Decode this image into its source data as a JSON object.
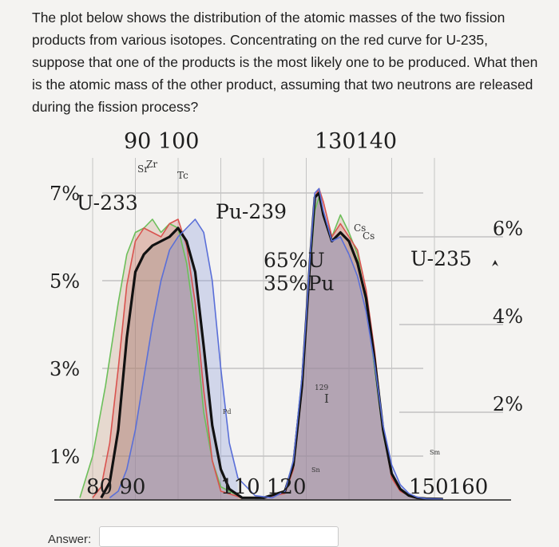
{
  "question": "The plot below shows the distribution of the atomic masses of the two fission products from various isotopes. Concentrating on the red curve for U-235, suppose that one of the products is the most likely one to be produced. What then is the atomic mass of the other product, assuming that two neutrons are released during the fission process?",
  "answer": {
    "label": "Answer:",
    "value": ""
  },
  "chart_data": {
    "type": "area",
    "xlim": [
      75,
      165
    ],
    "left_axis": {
      "ticks": [
        "7%",
        "5%",
        "3%",
        "1%"
      ],
      "values": [
        7,
        5,
        3,
        1
      ]
    },
    "right_axis": {
      "ticks": [
        "6%",
        "4%",
        "2%"
      ],
      "values": [
        6,
        4,
        2
      ]
    },
    "top_ticks": [
      {
        "label": "90 100"
      },
      {
        "label": "130140"
      }
    ],
    "bottom_ticks": [
      {
        "label": "80 90"
      },
      {
        "label": "110 120"
      },
      {
        "label": "150160"
      }
    ],
    "annotations": [
      "U-233",
      "Pu-239",
      "65%U",
      "35%Pu",
      "U-235",
      "Sr",
      "Zr",
      "Tc",
      "Cs",
      "Cs",
      "129",
      "I",
      "Sn",
      "Sm",
      "Pd"
    ],
    "series": [
      {
        "name": "U-233",
        "color": "#6cbf5a",
        "x": [
          77,
          80,
          83,
          86,
          88,
          90,
          92,
          94,
          96,
          98,
          100,
          102,
          104,
          106,
          108,
          110,
          115,
          120,
          125,
          127,
          129,
          130,
          131,
          132,
          133,
          134,
          136,
          138,
          140,
          142,
          144,
          146,
          148,
          150,
          152,
          154,
          156,
          158,
          162
        ],
        "y": [
          0.05,
          1.0,
          2.6,
          4.5,
          5.6,
          6.1,
          6.2,
          6.4,
          6.1,
          6.3,
          6.2,
          5.4,
          4.0,
          2.0,
          0.9,
          0.3,
          0.05,
          0.05,
          0.2,
          0.9,
          2.8,
          4.2,
          5.4,
          6.6,
          6.9,
          6.5,
          6.0,
          6.5,
          6.1,
          5.6,
          4.5,
          3.0,
          1.5,
          0.6,
          0.25,
          0.12,
          0.05,
          0.03,
          0.02
        ]
      },
      {
        "name": "U-235",
        "color": "#d9534f",
        "x": [
          80,
          82,
          84,
          86,
          88,
          90,
          92,
          94,
          96,
          98,
          100,
          102,
          104,
          106,
          108,
          110,
          115,
          120,
          125,
          127,
          129,
          130,
          131,
          132,
          133,
          134,
          136,
          138,
          140,
          142,
          144,
          146,
          148,
          150,
          152,
          154,
          156,
          158,
          162
        ],
        "y": [
          0.05,
          0.3,
          1.3,
          3.0,
          4.9,
          5.9,
          6.2,
          6.1,
          6.0,
          6.3,
          6.4,
          5.8,
          4.5,
          2.5,
          0.9,
          0.2,
          0.05,
          0.05,
          0.15,
          0.7,
          2.5,
          4.0,
          5.6,
          6.9,
          7.1,
          6.8,
          6.0,
          6.3,
          6.0,
          5.7,
          4.8,
          3.4,
          1.6,
          0.5,
          0.2,
          0.1,
          0.05,
          0.03,
          0.02
        ]
      },
      {
        "name": "65%U 35%Pu",
        "color": "#111111",
        "x": [
          82,
          84,
          86,
          88,
          90,
          92,
          94,
          96,
          98,
          100,
          102,
          104,
          106,
          108,
          110,
          112,
          115,
          120,
          125,
          127,
          129,
          130,
          131,
          132,
          133,
          134,
          136,
          138,
          140,
          142,
          144,
          146,
          148,
          150,
          152,
          154,
          156,
          158,
          162
        ],
        "y": [
          0.05,
          0.4,
          1.6,
          3.7,
          5.2,
          5.6,
          5.8,
          5.9,
          6.0,
          6.2,
          5.9,
          5.2,
          3.5,
          1.7,
          0.7,
          0.25,
          0.05,
          0.05,
          0.2,
          0.8,
          2.6,
          4.1,
          5.6,
          6.9,
          7.0,
          6.5,
          5.9,
          6.1,
          5.9,
          5.4,
          4.6,
          3.2,
          1.6,
          0.6,
          0.25,
          0.1,
          0.05,
          0.03,
          0.02
        ]
      },
      {
        "name": "Pu-239",
        "color": "#5a6fd8",
        "x": [
          84,
          86,
          88,
          90,
          92,
          94,
          96,
          98,
          100,
          102,
          104,
          106,
          108,
          110,
          112,
          114,
          118,
          122,
          125,
          127,
          129,
          130,
          131,
          132,
          133,
          134,
          136,
          138,
          140,
          142,
          144,
          146,
          148,
          150,
          152,
          154,
          156,
          158,
          162
        ],
        "y": [
          0.05,
          0.2,
          0.7,
          1.6,
          2.8,
          4.0,
          5.0,
          5.7,
          6.0,
          6.2,
          6.4,
          6.1,
          5.0,
          3.0,
          1.3,
          0.5,
          0.1,
          0.05,
          0.2,
          0.9,
          2.8,
          4.2,
          5.7,
          7.0,
          7.1,
          6.6,
          5.9,
          6.0,
          5.6,
          5.1,
          4.3,
          3.1,
          1.7,
          0.8,
          0.35,
          0.15,
          0.06,
          0.03,
          0.02
        ]
      }
    ]
  }
}
